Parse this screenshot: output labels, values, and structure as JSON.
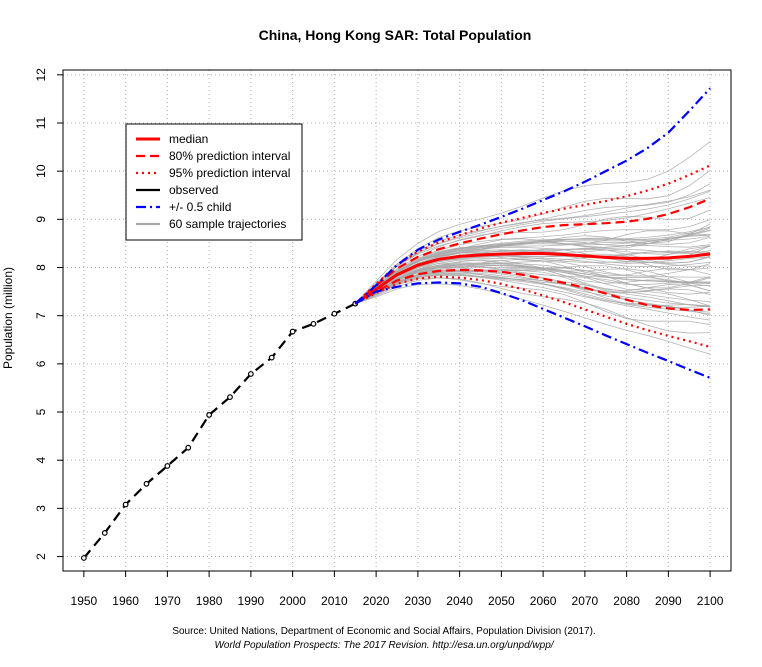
{
  "chart_data": {
    "type": "line",
    "title": "China, Hong Kong SAR: Total Population",
    "xlabel": "",
    "ylabel": "Population (million)",
    "xlim": [
      1945,
      2105
    ],
    "ylim": [
      1.7,
      12.1
    ],
    "x_ticks": [
      1950,
      1960,
      1970,
      1980,
      1990,
      2000,
      2010,
      2020,
      2030,
      2040,
      2050,
      2060,
      2070,
      2080,
      2090,
      2100
    ],
    "y_ticks": [
      2,
      3,
      4,
      5,
      6,
      7,
      8,
      9,
      10,
      11,
      12
    ],
    "grid": true,
    "legend_position": "top-left",
    "legend": [
      {
        "label": "median",
        "color": "#ff0000",
        "style": "solid"
      },
      {
        "label": "80% prediction interval",
        "color": "#ff0000",
        "style": "dashed"
      },
      {
        "label": "95% prediction interval",
        "color": "#ff0000",
        "style": "dotted"
      },
      {
        "label": "observed",
        "color": "#000000",
        "style": "solid"
      },
      {
        "label": "+/- 0.5 child",
        "color": "#0000ff",
        "style": "dashdot"
      },
      {
        "label": "60 sample trajectories",
        "color": "#aaaaaa",
        "style": "solid"
      }
    ],
    "series": [
      {
        "name": "observed",
        "color": "#000000",
        "x": [
          1950,
          1955,
          1960,
          1965,
          1970,
          1975,
          1980,
          1985,
          1990,
          1995,
          2000,
          2005,
          2010,
          2015
        ],
        "y": [
          1.97,
          2.49,
          3.08,
          3.51,
          3.88,
          4.26,
          4.94,
          5.31,
          5.79,
          6.13,
          6.67,
          6.83,
          7.04,
          7.25
        ]
      },
      {
        "name": "median",
        "color": "#ff0000",
        "x": [
          2015,
          2020,
          2025,
          2030,
          2035,
          2040,
          2045,
          2050,
          2055,
          2060,
          2065,
          2070,
          2075,
          2080,
          2085,
          2090,
          2095,
          2100
        ],
        "y": [
          7.25,
          7.55,
          7.85,
          8.05,
          8.17,
          8.23,
          8.26,
          8.28,
          8.29,
          8.29,
          8.27,
          8.24,
          8.21,
          8.19,
          8.19,
          8.2,
          8.23,
          8.28
        ]
      },
      {
        "name": "80% prediction interval",
        "color": "#ff0000",
        "x": [
          2015,
          2020,
          2025,
          2030,
          2035,
          2040,
          2045,
          2050,
          2055,
          2060,
          2065,
          2070,
          2075,
          2080,
          2085,
          2090,
          2095,
          2100
        ],
        "y": [
          7.25,
          7.62,
          7.98,
          8.22,
          8.38,
          8.5,
          8.6,
          8.69,
          8.77,
          8.84,
          8.88,
          8.9,
          8.92,
          8.95,
          9.01,
          9.11,
          9.25,
          9.43
        ]
      },
      {
        "name": "80% prediction interval",
        "color": "#ff0000",
        "x": [
          2015,
          2020,
          2025,
          2030,
          2035,
          2040,
          2045,
          2050,
          2055,
          2060,
          2065,
          2070,
          2075,
          2080,
          2085,
          2090,
          2095,
          2100
        ],
        "y": [
          7.25,
          7.5,
          7.73,
          7.86,
          7.93,
          7.95,
          7.94,
          7.91,
          7.85,
          7.77,
          7.68,
          7.58,
          7.46,
          7.33,
          7.22,
          7.15,
          7.12,
          7.13
        ]
      },
      {
        "name": "95% prediction interval",
        "color": "#ff0000",
        "x": [
          2015,
          2020,
          2025,
          2030,
          2035,
          2040,
          2045,
          2050,
          2055,
          2060,
          2065,
          2070,
          2075,
          2080,
          2085,
          2090,
          2095,
          2100
        ],
        "y": [
          7.25,
          7.66,
          8.05,
          8.33,
          8.52,
          8.67,
          8.81,
          8.93,
          9.03,
          9.13,
          9.22,
          9.3,
          9.38,
          9.48,
          9.6,
          9.74,
          9.92,
          10.12
        ]
      },
      {
        "name": "95% prediction interval",
        "color": "#ff0000",
        "x": [
          2015,
          2020,
          2025,
          2030,
          2035,
          2040,
          2045,
          2050,
          2055,
          2060,
          2065,
          2070,
          2075,
          2080,
          2085,
          2090,
          2095,
          2100
        ],
        "y": [
          7.25,
          7.47,
          7.66,
          7.77,
          7.81,
          7.79,
          7.74,
          7.66,
          7.55,
          7.42,
          7.28,
          7.13,
          6.98,
          6.83,
          6.7,
          6.58,
          6.47,
          6.35
        ]
      },
      {
        "name": "+/- 0.5 child",
        "color": "#0000ff",
        "x": [
          2015,
          2020,
          2025,
          2030,
          2035,
          2040,
          2045,
          2050,
          2055,
          2060,
          2065,
          2070,
          2075,
          2080,
          2085,
          2090,
          2095,
          2100
        ],
        "y": [
          7.25,
          7.63,
          8.05,
          8.37,
          8.58,
          8.74,
          8.89,
          9.05,
          9.22,
          9.4,
          9.58,
          9.78,
          10.0,
          10.22,
          10.48,
          10.8,
          11.25,
          11.72
        ]
      },
      {
        "name": "+/- 0.5 child",
        "color": "#0000ff",
        "x": [
          2015,
          2020,
          2025,
          2030,
          2035,
          2040,
          2045,
          2050,
          2055,
          2060,
          2065,
          2070,
          2075,
          2080,
          2085,
          2090,
          2095,
          2100
        ],
        "y": [
          7.25,
          7.5,
          7.6,
          7.67,
          7.69,
          7.67,
          7.6,
          7.47,
          7.32,
          7.14,
          6.96,
          6.78,
          6.59,
          6.41,
          6.23,
          6.06,
          5.88,
          5.71
        ]
      }
    ],
    "trajectory_years": [
      2015,
      2020,
      2025,
      2030,
      2035,
      2040,
      2045,
      2050,
      2055,
      2060,
      2065,
      2070,
      2075,
      2080,
      2085,
      2090,
      2095,
      2100
    ],
    "trajectory_spread": [
      0,
      0.12,
      0.22,
      0.3,
      0.38,
      0.45,
      0.53,
      0.62,
      0.71,
      0.8,
      0.88,
      0.96,
      1.04,
      1.12,
      1.2,
      1.3,
      1.42,
      1.55
    ],
    "trajectory_count": 60
  },
  "source": {
    "line1": "Source: United Nations, Department of Economic and Social Affairs, Population Division (2017).",
    "line2": "World Population Prospects: The 2017 Revision. http://esa.un.org/unpd/wpp/"
  }
}
